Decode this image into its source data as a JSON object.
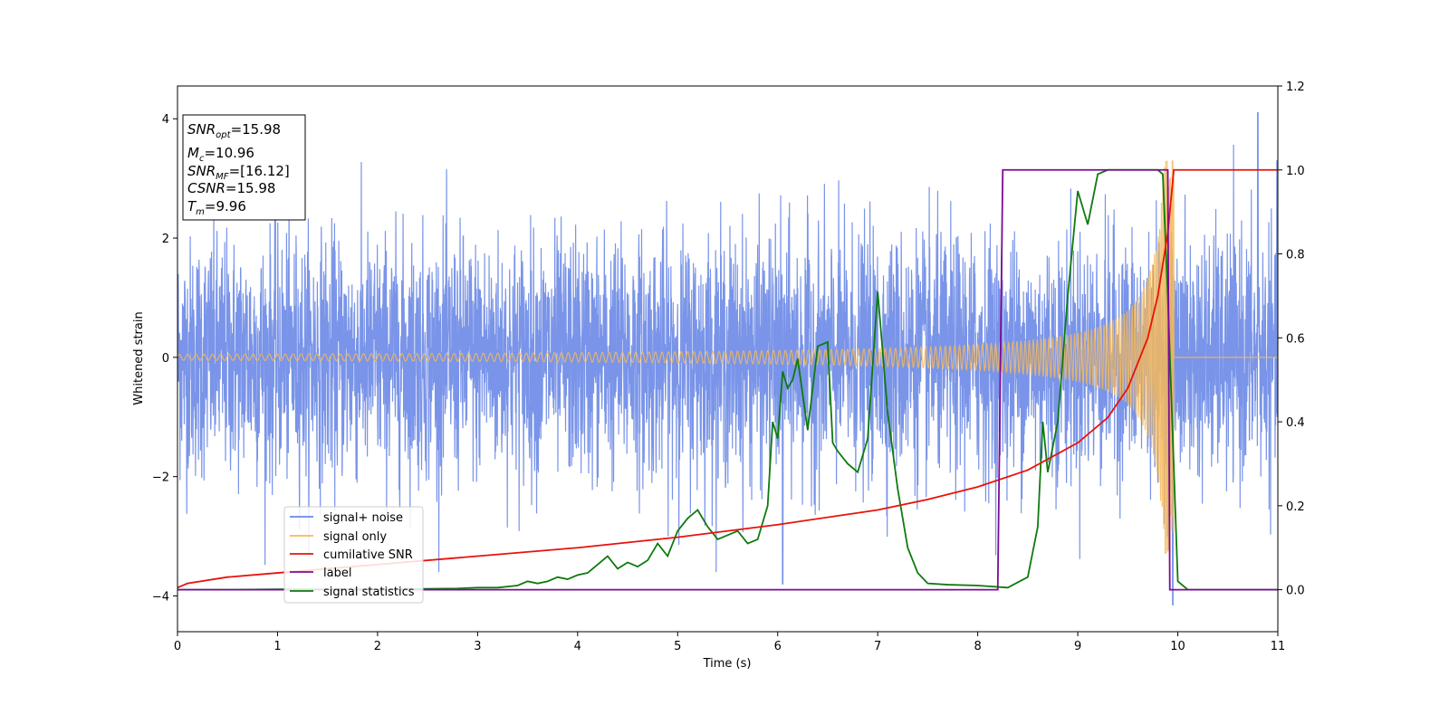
{
  "chart_data": {
    "type": "line",
    "xlabel": "Time (s)",
    "ylabel": "Whitened strain",
    "xlim": [
      0,
      11
    ],
    "ylim": [
      -4.6,
      4.55
    ],
    "y2lim": [
      -0.1,
      1.2
    ],
    "x_ticks": [
      "0",
      "1",
      "2",
      "3",
      "4",
      "5",
      "6",
      "7",
      "8",
      "9",
      "10",
      "11"
    ],
    "y_ticks": [
      "4",
      "2",
      "0",
      "−2",
      "−4"
    ],
    "y2_ticks": [
      "1.2",
      "1.0",
      "0.8",
      "0.6",
      "0.4",
      "0.2",
      "0.0"
    ],
    "grid": false,
    "legend_position": "lower-left",
    "info_box": {
      "snr_opt": {
        "name": "SNR",
        "sub": "opt",
        "value": "=15.98"
      },
      "mc": {
        "name": "M",
        "sub": "c",
        "value": "=10.96"
      },
      "snr_mf": {
        "name": "SNR",
        "sub": "MF",
        "value": "=[16.12]"
      },
      "csnr": {
        "name": "CSNR",
        "value": "=15.98"
      },
      "tm": {
        "name": "T",
        "sub": "m",
        "value": "=9.96"
      }
    },
    "series": [
      {
        "name": "signal+ noise",
        "axis": "left",
        "color": "#6a88e5",
        "description_values": "dense gaussian noise, std ~1, peaks to about +/-3.5, max 4.1 near t=10.8",
        "noise_std": 1.0
      },
      {
        "name": "signal only",
        "axis": "left",
        "color": "#f5b95a",
        "chirp": {
          "t_merge": 9.96,
          "amp_start": 0.05,
          "amp_at_merge": 3.3
        }
      },
      {
        "name": "cumilative SNR",
        "axis": "right",
        "color": "#e8120c",
        "x": [
          0,
          0.1,
          0.5,
          1,
          2,
          3,
          4,
          5,
          6,
          7,
          7.5,
          8,
          8.5,
          9,
          9.3,
          9.5,
          9.7,
          9.8,
          9.9,
          9.96,
          11
        ],
        "y": [
          0.005,
          0.015,
          0.03,
          0.04,
          0.06,
          0.08,
          0.1,
          0.125,
          0.155,
          0.19,
          0.215,
          0.245,
          0.285,
          0.35,
          0.41,
          0.48,
          0.6,
          0.7,
          0.85,
          1.0,
          1.0
        ]
      },
      {
        "name": "label",
        "axis": "right",
        "color": "#7b0b96",
        "x": [
          0,
          8.2,
          8.25,
          9.9,
          9.92,
          10,
          11
        ],
        "y": [
          0,
          0,
          1,
          1,
          0,
          0,
          0
        ]
      },
      {
        "name": "signal statistics",
        "axis": "right",
        "color": "#0e7a0e",
        "x": [
          0,
          0.5,
          1,
          2,
          2.8,
          3,
          3.2,
          3.4,
          3.5,
          3.6,
          3.7,
          3.8,
          3.9,
          4.0,
          4.1,
          4.2,
          4.3,
          4.4,
          4.5,
          4.6,
          4.7,
          4.8,
          4.9,
          5.0,
          5.1,
          5.2,
          5.3,
          5.4,
          5.5,
          5.6,
          5.7,
          5.8,
          5.9,
          5.95,
          6.0,
          6.05,
          6.1,
          6.15,
          6.2,
          6.3,
          6.4,
          6.5,
          6.55,
          6.6,
          6.7,
          6.8,
          6.9,
          7.0,
          7.1,
          7.2,
          7.3,
          7.4,
          7.5,
          7.7,
          8.0,
          8.3,
          8.5,
          8.6,
          8.65,
          8.7,
          8.8,
          8.9,
          9.0,
          9.1,
          9.2,
          9.3,
          9.5,
          9.7,
          9.8,
          9.85,
          9.9,
          10.0,
          10.1,
          11
        ],
        "y": [
          0,
          0,
          0.001,
          0.001,
          0.003,
          0.005,
          0.005,
          0.01,
          0.02,
          0.015,
          0.02,
          0.03,
          0.025,
          0.035,
          0.04,
          0.06,
          0.08,
          0.05,
          0.065,
          0.055,
          0.07,
          0.11,
          0.08,
          0.14,
          0.17,
          0.19,
          0.15,
          0.12,
          0.13,
          0.14,
          0.11,
          0.12,
          0.2,
          0.4,
          0.36,
          0.52,
          0.48,
          0.5,
          0.55,
          0.38,
          0.58,
          0.59,
          0.35,
          0.33,
          0.3,
          0.28,
          0.36,
          0.71,
          0.42,
          0.24,
          0.1,
          0.04,
          0.015,
          0.012,
          0.01,
          0.005,
          0.03,
          0.15,
          0.4,
          0.28,
          0.4,
          0.7,
          0.95,
          0.87,
          0.99,
          1.0,
          1.0,
          1.0,
          1.0,
          0.99,
          0.7,
          0.02,
          0,
          0
        ]
      }
    ]
  }
}
